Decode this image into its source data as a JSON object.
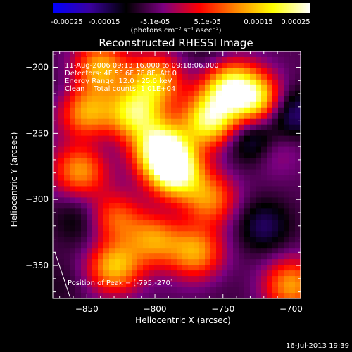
{
  "colorbar": {
    "ticks": [
      "-0.00025",
      "-0.00015",
      "-5.1e-05",
      "5.1e-05",
      "0.00015",
      "0.00025"
    ],
    "tick_values": [
      -0.00025,
      -0.00015,
      -5.1e-05,
      5.1e-05,
      0.00015,
      0.00025
    ],
    "units": "(photons cm⁻² s⁻¹ asec⁻²)",
    "colormap": [
      "#0000ff",
      "#3a00a0",
      "#000000",
      "#7a0080",
      "#ff0000",
      "#ff8800",
      "#ffff00",
      "#ffffff"
    ]
  },
  "info": {
    "time": "11-Aug-2006 09:13:16.000 to 09:18:06.000",
    "detectors": "Detectors: 4F 5F 6F 7F 8F, Att 0",
    "energy": "Energy Range: 12.0 - 25.0 keV",
    "clean": "Clean    Total counts: 1.01E+04"
  },
  "peak": "Position of Peak = [-795,-270]",
  "timestamp": "16-Jul-2013 19:39",
  "chart_data": {
    "type": "heatmap",
    "title": "Reconstructed RHESSI Image",
    "xlabel": "Heliocentric X (arcsec)",
    "ylabel": "Heliocentric Y (arcsec)",
    "xlim": [
      -875,
      -693
    ],
    "ylim": [
      -375,
      -188
    ],
    "xticks": [
      -850,
      -800,
      -750,
      -700
    ],
    "yticks": [
      -200,
      -250,
      -300,
      -350
    ],
    "zlim": [
      -0.00025,
      0.00025
    ],
    "peak": {
      "x": -795,
      "y": -270
    },
    "features": [
      {
        "x": -795,
        "y": -262,
        "value": 0.00025
      },
      {
        "x": -785,
        "y": -280,
        "value": 0.00022
      },
      {
        "x": -760,
        "y": -240,
        "value": 0.0002
      },
      {
        "x": -745,
        "y": -215,
        "value": 0.00019
      },
      {
        "x": -725,
        "y": -225,
        "value": 0.00017
      },
      {
        "x": -815,
        "y": -235,
        "value": 0.00017
      },
      {
        "x": -850,
        "y": -235,
        "value": 0.00013
      },
      {
        "x": -855,
        "y": -278,
        "value": 0.00012
      },
      {
        "x": -840,
        "y": -200,
        "value": 0.00013
      },
      {
        "x": -800,
        "y": -210,
        "value": 0.00014
      },
      {
        "x": -830,
        "y": -350,
        "value": 0.00016
      },
      {
        "x": -770,
        "y": -340,
        "value": 0.00012
      },
      {
        "x": -760,
        "y": -300,
        "value": 0.0001
      },
      {
        "x": -830,
        "y": -315,
        "value": 9e-05
      },
      {
        "x": -800,
        "y": -330,
        "value": 0.00011
      },
      {
        "x": -715,
        "y": -260,
        "value": 5e-05
      },
      {
        "x": -725,
        "y": -255,
        "value": -0.00022
      },
      {
        "x": -700,
        "y": -235,
        "value": -0.00018
      },
      {
        "x": -720,
        "y": -320,
        "value": -0.00015
      },
      {
        "x": -835,
        "y": -335,
        "value": -0.0001
      },
      {
        "x": -855,
        "y": -315,
        "value": -0.00012
      },
      {
        "x": -845,
        "y": -255,
        "value": -9e-05
      },
      {
        "x": -870,
        "y": -215,
        "value": -8e-05
      },
      {
        "x": -760,
        "y": -190,
        "value": -0.0001
      },
      {
        "x": -790,
        "y": -310,
        "value": -8e-05
      },
      {
        "x": -700,
        "y": -365,
        "value": 0.00012
      },
      {
        "x": -745,
        "y": -370,
        "value": -7e-05
      },
      {
        "x": -870,
        "y": -365,
        "value": -9e-05
      }
    ]
  }
}
